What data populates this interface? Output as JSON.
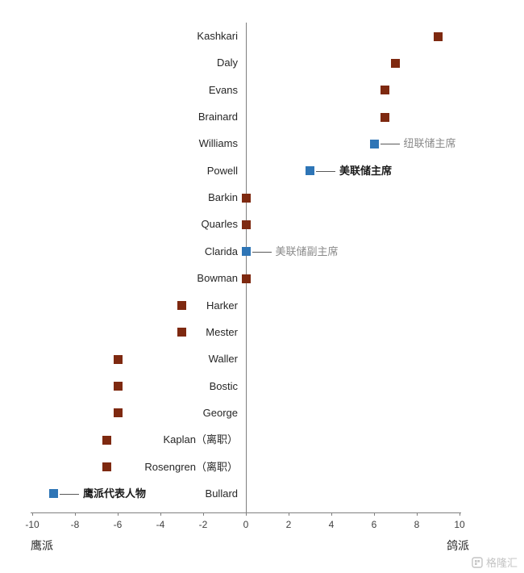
{
  "chart_data": {
    "type": "scatter",
    "title": "",
    "xlim": [
      -10,
      10
    ],
    "x_ticks": [
      -10,
      -8,
      -6,
      -4,
      -2,
      0,
      2,
      4,
      6,
      8,
      10
    ],
    "axis_left_label": "鹰派",
    "axis_right_label": "鸽派",
    "grid": false,
    "colors": {
      "default": "#7E2910",
      "highlight": "#2E75B6"
    },
    "points": [
      {
        "label": "Kashkari",
        "value": 9,
        "color": "default"
      },
      {
        "label": "Daly",
        "value": 7,
        "color": "default"
      },
      {
        "label": "Evans",
        "value": 6.5,
        "color": "default"
      },
      {
        "label": "Brainard",
        "value": 6.5,
        "color": "default"
      },
      {
        "label": "Williams",
        "value": 6,
        "color": "highlight",
        "annotation": "纽联储主席",
        "annotation_style": "gray"
      },
      {
        "label": "Powell",
        "value": 3,
        "color": "highlight",
        "annotation": "美联储主席",
        "annotation_style": "black"
      },
      {
        "label": "Barkin",
        "value": 0,
        "color": "default"
      },
      {
        "label": "Quarles",
        "value": 0,
        "color": "default"
      },
      {
        "label": "Clarida",
        "value": 0,
        "color": "highlight",
        "annotation": "美联储副主席",
        "annotation_style": "gray"
      },
      {
        "label": "Bowman",
        "value": 0,
        "color": "default"
      },
      {
        "label": "Harker",
        "value": -3,
        "color": "default"
      },
      {
        "label": "Mester",
        "value": -3,
        "color": "default"
      },
      {
        "label": "Waller",
        "value": -6,
        "color": "default"
      },
      {
        "label": "Bostic",
        "value": -6,
        "color": "default"
      },
      {
        "label": "George",
        "value": -6,
        "color": "default"
      },
      {
        "label": "Kaplan（离职）",
        "value": -6.5,
        "color": "default"
      },
      {
        "label": "Rosengren（离职）",
        "value": -6.5,
        "color": "default"
      },
      {
        "label": "Bullard",
        "value": -9,
        "color": "highlight",
        "annotation": "鹰派代表人物",
        "annotation_style": "black"
      }
    ]
  },
  "watermark": {
    "text": "格隆汇"
  }
}
